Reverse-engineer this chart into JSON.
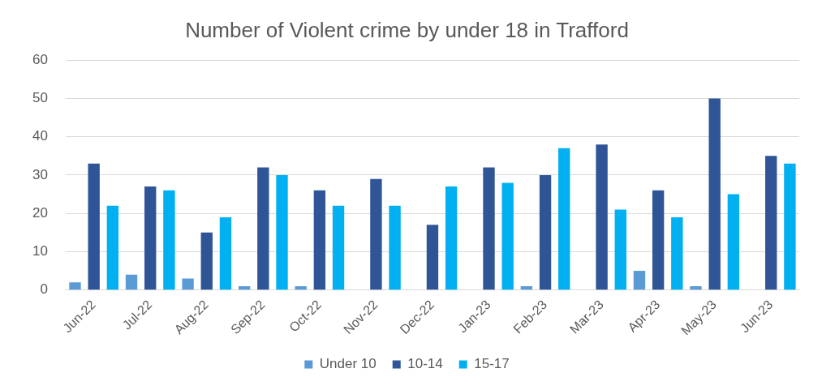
{
  "chart_data": {
    "type": "bar",
    "title": "Number of Violent crime by under 18 in Trafford",
    "categories": [
      "Jun-22",
      "Jul-22",
      "Aug-22",
      "Sep-22",
      "Oct-22",
      "Nov-22",
      "Dec-22",
      "Jan-23",
      "Feb-23",
      "Mar-23",
      "Apr-23",
      "May-23",
      "Jun-23"
    ],
    "series": [
      {
        "name": "Under 10",
        "color": "#5b9bd5",
        "values": [
          2,
          4,
          3,
          1,
          1,
          null,
          null,
          null,
          1,
          null,
          5,
          1,
          null
        ]
      },
      {
        "name": "10-14",
        "color": "#2f5597",
        "values": [
          33,
          27,
          15,
          32,
          26,
          29,
          17,
          32,
          30,
          38,
          26,
          50,
          35
        ]
      },
      {
        "name": "15-17",
        "color": "#00b0f0",
        "values": [
          22,
          26,
          19,
          30,
          22,
          22,
          27,
          28,
          37,
          21,
          19,
          25,
          33
        ]
      }
    ],
    "ylim": [
      0,
      60
    ],
    "yticks": [
      0,
      10,
      20,
      30,
      40,
      50,
      60
    ],
    "grid": "y",
    "legend": "bottom"
  }
}
